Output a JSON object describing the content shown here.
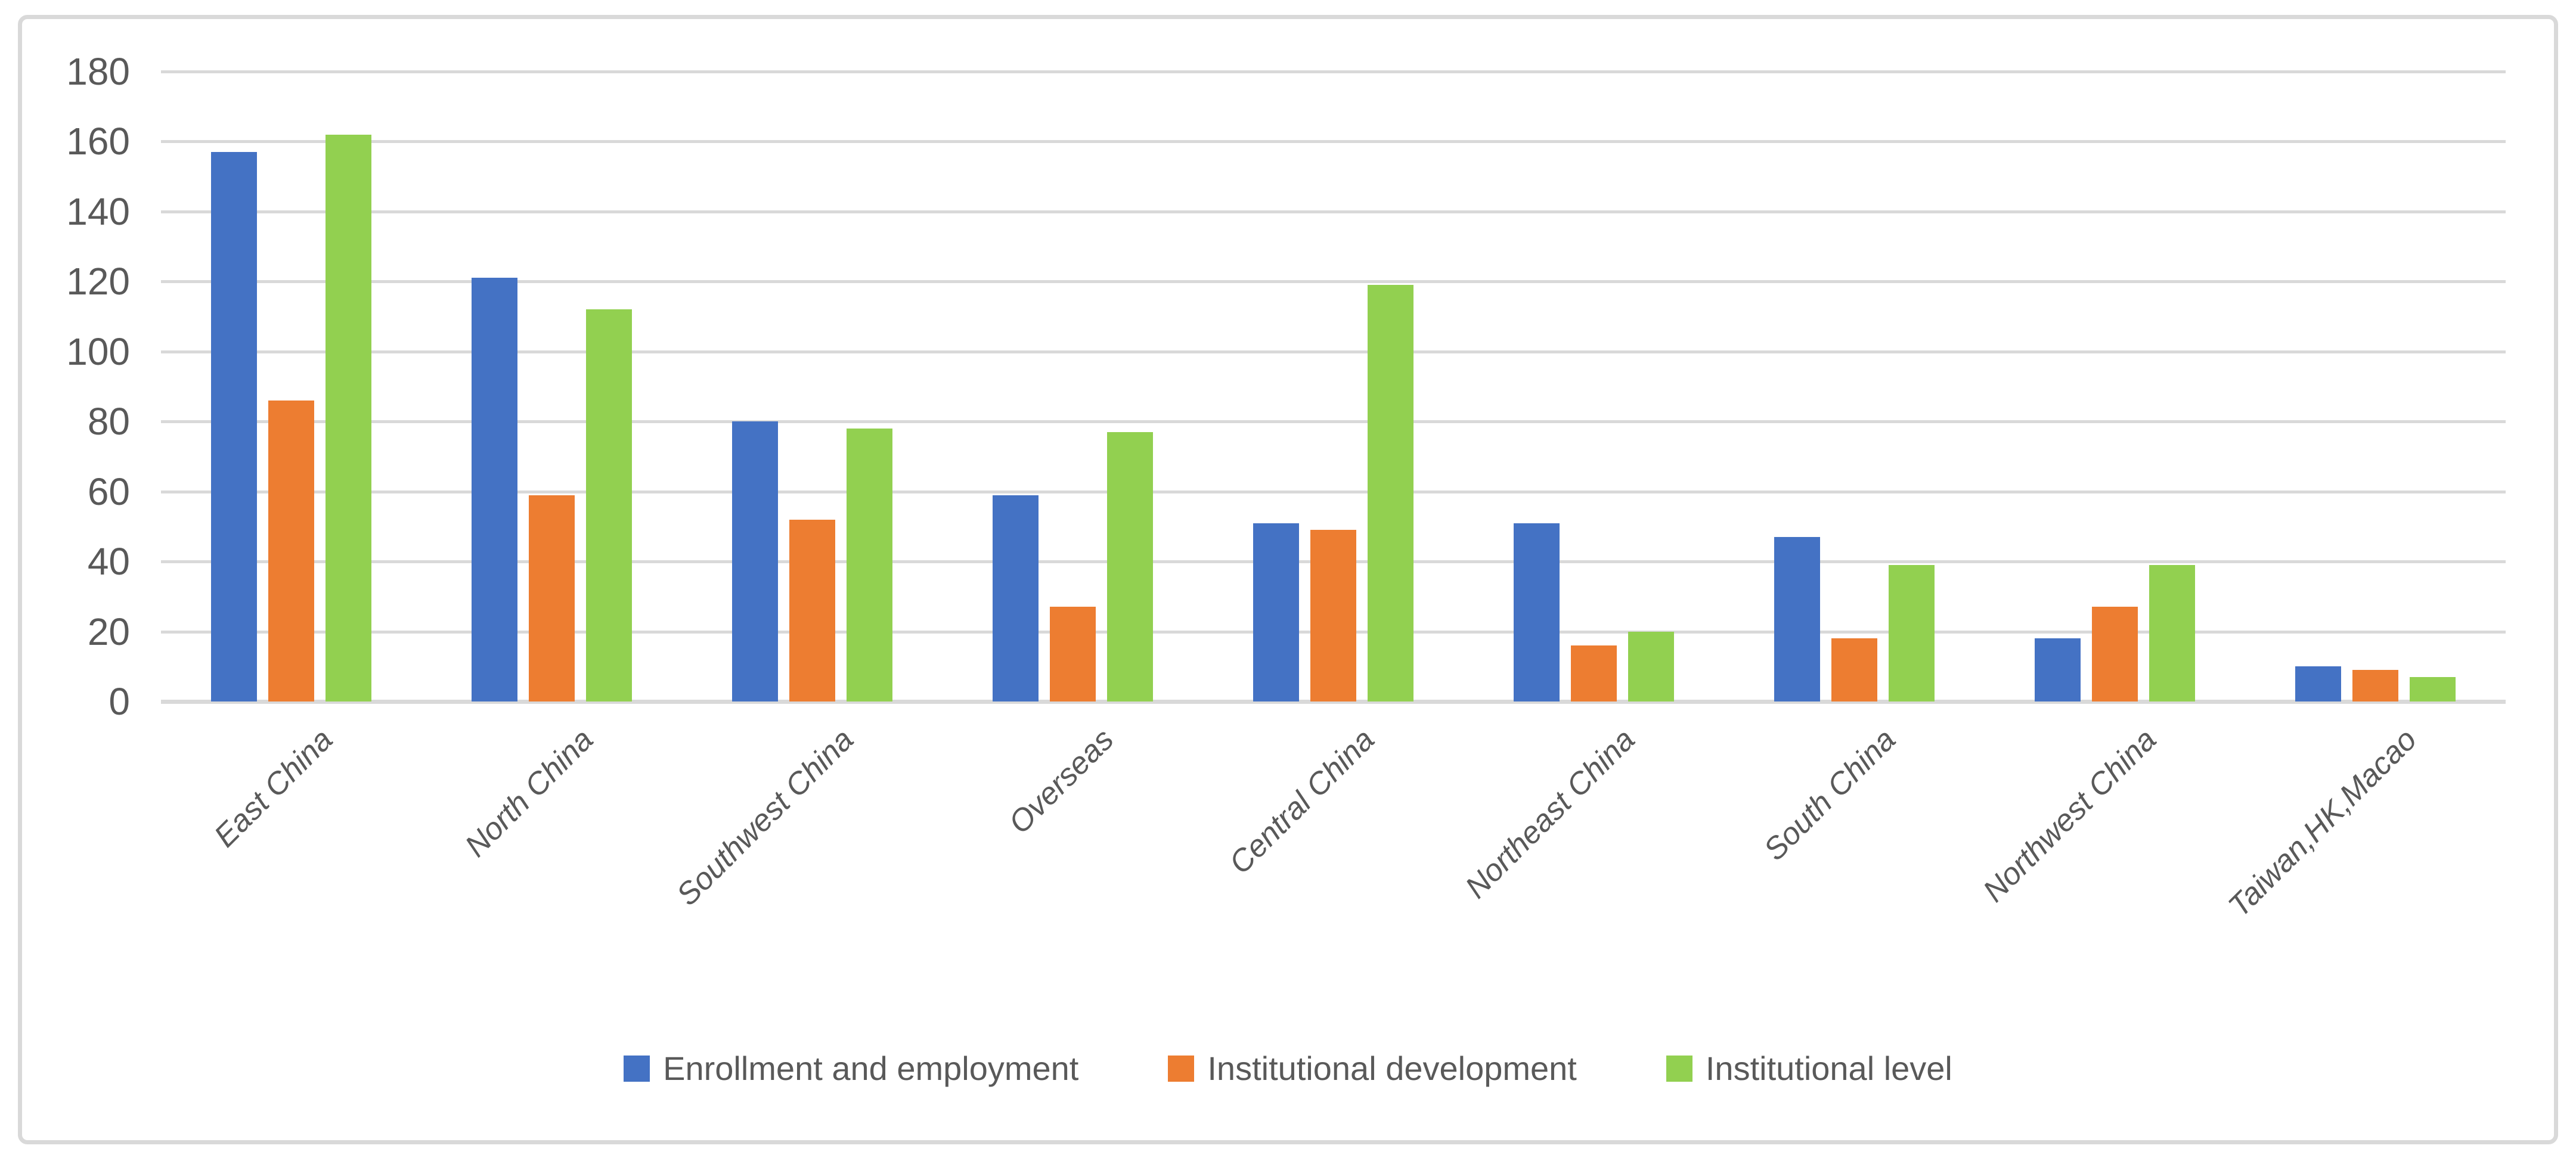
{
  "chart_data": {
    "type": "bar",
    "title": "",
    "xlabel": "",
    "ylabel": "",
    "categories": [
      "East China",
      "North China",
      "Southwest China",
      "Overseas",
      "Central China",
      "Northeast China",
      "South China",
      "Northwest China",
      "Taiwan,HK,Macao"
    ],
    "series": [
      {
        "name": "Enrollment and employment",
        "color": "#4472C4",
        "values": [
          157,
          121,
          80,
          59,
          51,
          51,
          47,
          18,
          10
        ]
      },
      {
        "name": "Institutional development",
        "color": "#ED7D31",
        "values": [
          86,
          59,
          52,
          27,
          49,
          16,
          18,
          27,
          9
        ]
      },
      {
        "name": "Institutional level",
        "color": "#92D050",
        "values": [
          162,
          112,
          78,
          77,
          119,
          20,
          39,
          39,
          7
        ]
      }
    ],
    "ylim": [
      0,
      180
    ],
    "yticks": [
      0,
      20,
      40,
      60,
      80,
      100,
      120,
      140,
      160,
      180
    ],
    "grid": "horizontal-on",
    "legend_position": "bottom-center",
    "x_label_rotation_deg": 45,
    "colors": {
      "gridline": "#D9D9D9",
      "axis_text": "#595959",
      "frame_border": "#D9D9D9",
      "background": "#FFFFFF"
    }
  }
}
